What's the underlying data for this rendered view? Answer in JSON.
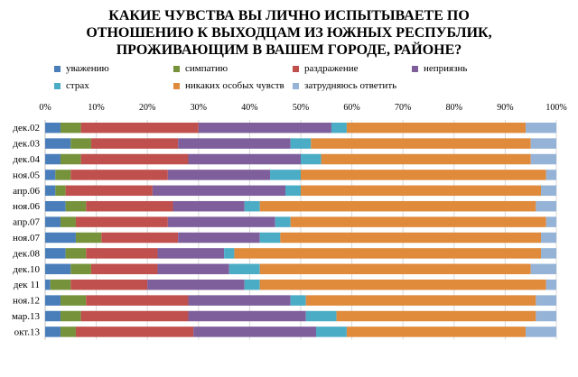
{
  "title_lines": [
    "КАКИЕ ЧУВСТВА ВЫ ЛИЧНО ИСПЫТЫВАЕТЕ ПО",
    "ОТНОШЕНИЮ К ВЫХОДЦАМ ИЗ ЮЖНЫХ РЕСПУБЛИК,",
    "ПРОЖИВАЮЩИМ В ВАШЕМ ГОРОДЕ, РАЙОНЕ?"
  ],
  "chart_data": {
    "type": "bar",
    "orientation": "horizontal",
    "stacked": "100%",
    "title": "КАКИЕ ЧУВСТВА ВЫ ЛИЧНО ИСПЫТЫВАЕТЕ ПО ОТНОШЕНИЮ К ВЫХОДЦАМ ИЗ ЮЖНЫХ РЕСПУБЛИК, ПРОЖИВАЮЩИМ В ВАШЕМ ГОРОДЕ, РАЙОНЕ?",
    "xlabel": "",
    "ylabel": "",
    "xlim": [
      0,
      100
    ],
    "x_ticks": [
      "0%",
      "10%",
      "20%",
      "30%",
      "40%",
      "50%",
      "60%",
      "70%",
      "80%",
      "90%",
      "100%"
    ],
    "grid": true,
    "legend_position": "top",
    "categories": [
      "дек.02",
      "дек.03",
      "дек.04",
      "ноя.05",
      "апр.06",
      "ноя.06",
      "апр.07",
      "ноя.07",
      "дек.08",
      "дек.10",
      "дек 11",
      "ноя.12",
      "мар.13",
      "окт.13"
    ],
    "series": [
      {
        "name": "уважению",
        "color": "#4a7ebb",
        "values": [
          3,
          5,
          3,
          2,
          2,
          4,
          3,
          6,
          4,
          5,
          1,
          3,
          3,
          3
        ]
      },
      {
        "name": "симпатию",
        "color": "#76933c",
        "values": [
          4,
          4,
          4,
          3,
          2,
          4,
          3,
          5,
          4,
          4,
          4,
          5,
          4,
          3
        ]
      },
      {
        "name": "раздражение",
        "color": "#c0504d",
        "values": [
          23,
          17,
          21,
          19,
          17,
          17,
          18,
          15,
          14,
          13,
          15,
          20,
          21,
          23
        ]
      },
      {
        "name": "неприязнь",
        "color": "#7e5f9c",
        "values": [
          26,
          22,
          22,
          20,
          26,
          14,
          21,
          16,
          13,
          14,
          19,
          20,
          23,
          24
        ]
      },
      {
        "name": "страх",
        "color": "#4bacc6",
        "values": [
          3,
          4,
          4,
          6,
          3,
          3,
          3,
          4,
          2,
          6,
          3,
          3,
          6,
          6
        ]
      },
      {
        "name": "никаких особых чувств",
        "color": "#e08a3c",
        "values": [
          35,
          43,
          41,
          48,
          47,
          54,
          50,
          51,
          60,
          53,
          56,
          45,
          39,
          35
        ]
      },
      {
        "name": "затрудняюсь ответить",
        "color": "#95b3d7",
        "values": [
          6,
          5,
          5,
          2,
          3,
          4,
          2,
          3,
          3,
          5,
          2,
          4,
          4,
          6
        ]
      }
    ]
  }
}
